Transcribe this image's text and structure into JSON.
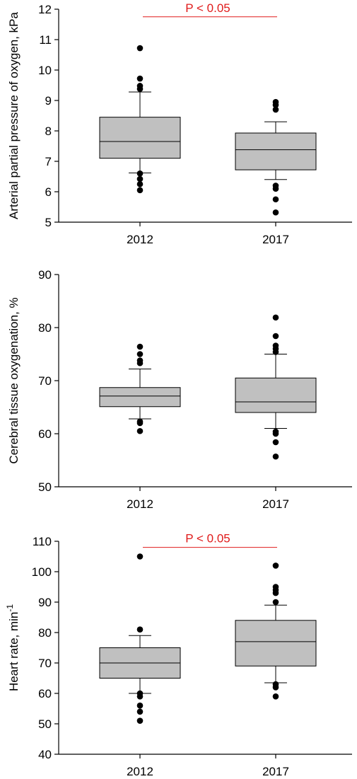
{
  "chart_data": [
    {
      "type": "box",
      "ylabel": "Arterial partial pressure of oxygen, kPa",
      "ylim": [
        5,
        12
      ],
      "yticks": [
        5,
        6,
        7,
        8,
        9,
        10,
        11,
        12
      ],
      "categories": [
        "2012",
        "2017"
      ],
      "boxes": [
        {
          "q1": 7.1,
          "median": 7.65,
          "q3": 8.45,
          "whisker_low": 6.62,
          "whisker_high": 9.28,
          "outliers": [
            10.72,
            9.72,
            9.48,
            9.38,
            6.6,
            6.42,
            6.25,
            6.05
          ]
        },
        {
          "q1": 6.72,
          "median": 7.38,
          "q3": 7.93,
          "whisker_low": 6.4,
          "whisker_high": 8.3,
          "outliers": [
            8.95,
            8.85,
            8.7,
            6.2,
            6.1,
            5.75,
            5.32
          ]
        }
      ],
      "significance": {
        "text": "P < 0.05",
        "color": "#e01b1b",
        "y": 11.75
      }
    },
    {
      "type": "box",
      "ylabel": "Cerebral tissue oxygenation, %",
      "ylim": [
        50,
        90
      ],
      "yticks": [
        50,
        60,
        70,
        80,
        90
      ],
      "categories": [
        "2012",
        "2017"
      ],
      "boxes": [
        {
          "q1": 65.1,
          "median": 67.1,
          "q3": 68.7,
          "whisker_low": 62.8,
          "whisker_high": 72.2,
          "outliers": [
            76.4,
            75.0,
            73.8,
            73.3,
            62.3,
            62.0,
            60.5
          ]
        },
        {
          "q1": 64.0,
          "median": 66.0,
          "q3": 70.5,
          "whisker_low": 61.0,
          "whisker_high": 75.0,
          "outliers": [
            81.9,
            78.4,
            76.6,
            76.0,
            75.4,
            60.4,
            60.0,
            58.4,
            55.7
          ]
        }
      ]
    },
    {
      "type": "box",
      "ylabel": "Heart rate, min",
      "ylabel_sup": "-1",
      "ylim": [
        40,
        110
      ],
      "yticks": [
        40,
        50,
        60,
        70,
        80,
        90,
        100,
        110
      ],
      "categories": [
        "2012",
        "2017"
      ],
      "boxes": [
        {
          "q1": 65,
          "median": 70,
          "q3": 75,
          "whisker_low": 60,
          "whisker_high": 79,
          "outliers": [
            105,
            81,
            60,
            59,
            56,
            54,
            51
          ]
        },
        {
          "q1": 69,
          "median": 77,
          "q3": 84,
          "whisker_low": 63.5,
          "whisker_high": 89,
          "outliers": [
            102,
            95,
            94,
            93,
            90,
            63,
            62,
            59
          ]
        }
      ],
      "significance": {
        "text": "P < 0.05",
        "color": "#e01b1b",
        "y": 108
      }
    }
  ],
  "style": {
    "box_fill": "#c0c0c0",
    "stroke": "#000000",
    "point_color": "#000000"
  }
}
